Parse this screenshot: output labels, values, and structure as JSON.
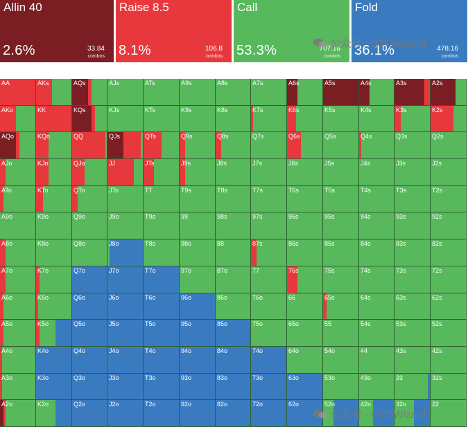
{
  "colors": {
    "allin": "#7a1e24",
    "raise": "#e7393d",
    "call": "#58b85c",
    "fold": "#3a7bbf"
  },
  "summary": [
    {
      "key": "allin",
      "label": "Allin 40",
      "percent": "2.6%",
      "combos": "33.84",
      "combos_label": "combos"
    },
    {
      "key": "raise",
      "label": "Raise 8.5",
      "percent": "8.1%",
      "combos": "106.8",
      "combos_label": "combos"
    },
    {
      "key": "call",
      "label": "Call",
      "percent": "53.3%",
      "combos": "707.18",
      "combos_label": "combos"
    },
    {
      "key": "fold",
      "label": "Fold",
      "percent": "36.1%",
      "combos": "478.16",
      "combos_label": "combos"
    }
  ],
  "watermark": "公众号 · GTOWizard",
  "ranks": [
    "A",
    "K",
    "Q",
    "J",
    "T",
    "9",
    "8",
    "7",
    "6",
    "5",
    "4",
    "3",
    "2"
  ],
  "grid": [
    [
      "AA",
      "AKs",
      "AQs",
      "AJs",
      "ATs",
      "A9s",
      "A8s",
      "A7s",
      "A6s",
      "A5s",
      "A4s",
      "A3s",
      "A2s"
    ],
    [
      "AKo",
      "KK",
      "KQs",
      "KJs",
      "KTs",
      "K9s",
      "K8s",
      "K7s",
      "K6s",
      "K5s",
      "K4s",
      "K3s",
      "K2s"
    ],
    [
      "AQo",
      "KQo",
      "QQ",
      "QJs",
      "QTs",
      "Q9s",
      "Q8s",
      "Q7s",
      "Q6s",
      "Q5s",
      "Q4s",
      "Q3s",
      "Q2s"
    ],
    [
      "AJo",
      "KJo",
      "QJo",
      "JJ",
      "JTs",
      "J9s",
      "J8s",
      "J7s",
      "J6s",
      "J5s",
      "J4s",
      "J3s",
      "J2s"
    ],
    [
      "ATo",
      "KTo",
      "QTo",
      "JTo",
      "TT",
      "T9s",
      "T8s",
      "T7s",
      "T6s",
      "T5s",
      "T4s",
      "T3s",
      "T2s"
    ],
    [
      "A9o",
      "K9o",
      "Q9o",
      "J9o",
      "T9o",
      "99",
      "98s",
      "97s",
      "96s",
      "95s",
      "94s",
      "93s",
      "92s"
    ],
    [
      "A8o",
      "K8o",
      "Q8o",
      "J8o",
      "T8o",
      "98o",
      "88",
      "87s",
      "86s",
      "85s",
      "84s",
      "83s",
      "82s"
    ],
    [
      "A7o",
      "K7o",
      "Q7o",
      "J7o",
      "T7o",
      "97o",
      "87o",
      "77",
      "76s",
      "75s",
      "74s",
      "73s",
      "72s"
    ],
    [
      "A6o",
      "K6o",
      "Q6o",
      "J6o",
      "T6o",
      "96o",
      "86o",
      "76o",
      "66",
      "65s",
      "64s",
      "63s",
      "62s"
    ],
    [
      "A5o",
      "K5o",
      "Q5o",
      "J5o",
      "T5o",
      "95o",
      "85o",
      "75o",
      "65o",
      "55",
      "54s",
      "53s",
      "52s"
    ],
    [
      "A4o",
      "K4o",
      "Q4o",
      "J4o",
      "T4o",
      "94o",
      "84o",
      "74o",
      "64o",
      "54o",
      "44",
      "43s",
      "42s"
    ],
    [
      "A3o",
      "K3o",
      "Q3o",
      "J3o",
      "T3o",
      "93o",
      "83o",
      "73o",
      "63o",
      "53o",
      "43o",
      "33",
      "32s"
    ],
    [
      "A2o",
      "K2o",
      "Q2o",
      "J2o",
      "T2o",
      "92o",
      "82o",
      "72o",
      "62o",
      "52o",
      "42o",
      "32o",
      "22"
    ]
  ],
  "frequencies": [
    [
      [
        0,
        1,
        0,
        0
      ],
      [
        0,
        0.45,
        0.55,
        0
      ],
      [
        0.45,
        0.1,
        0.45,
        0
      ],
      [
        0,
        0,
        1,
        0
      ],
      [
        0,
        0,
        1,
        0
      ],
      [
        0,
        0,
        1,
        0
      ],
      [
        0,
        0,
        1,
        0
      ],
      [
        0,
        0,
        1,
        0
      ],
      [
        0.3,
        0,
        0.7,
        0
      ],
      [
        1,
        0,
        0,
        0
      ],
      [
        0.3,
        0,
        0.7,
        0
      ],
      [
        0.85,
        0.15,
        0,
        0
      ],
      [
        0.7,
        0,
        0.3,
        0
      ]
    ],
    [
      [
        0,
        0.45,
        0.55,
        0
      ],
      [
        0,
        1,
        0,
        0
      ],
      [
        0.55,
        0.1,
        0.35,
        0
      ],
      [
        0,
        0,
        1,
        0
      ],
      [
        0,
        0,
        1,
        0
      ],
      [
        0,
        0,
        1,
        0
      ],
      [
        0,
        0,
        1,
        0
      ],
      [
        0,
        0.05,
        0.95,
        0
      ],
      [
        0,
        0.25,
        0.75,
        0
      ],
      [
        0,
        0,
        1,
        0
      ],
      [
        0,
        0,
        1,
        0
      ],
      [
        0,
        0.18,
        0.82,
        0
      ],
      [
        0,
        0.65,
        0.35,
        0
      ]
    ],
    [
      [
        0.45,
        0.1,
        0.45,
        0
      ],
      [
        0,
        0.35,
        0.65,
        0
      ],
      [
        0,
        0.95,
        0.05,
        0
      ],
      [
        0.45,
        0.5,
        0.05,
        0
      ],
      [
        0,
        0.5,
        0.5,
        0
      ],
      [
        0,
        0.15,
        0.85,
        0
      ],
      [
        0,
        0.15,
        0.85,
        0
      ],
      [
        0,
        0,
        1,
        0
      ],
      [
        0,
        0.4,
        0.6,
        0
      ],
      [
        0,
        0,
        1,
        0
      ],
      [
        0,
        0.05,
        0.95,
        0
      ],
      [
        0,
        0,
        1,
        0
      ],
      [
        0,
        0,
        1,
        0
      ]
    ],
    [
      [
        0,
        0.15,
        0.85,
        0
      ],
      [
        0,
        0.35,
        0.65,
        0
      ],
      [
        0,
        0.35,
        0.65,
        0
      ],
      [
        0,
        0.75,
        0.25,
        0
      ],
      [
        0,
        0.3,
        0.7,
        0
      ],
      [
        0,
        0.15,
        0.85,
        0
      ],
      [
        0,
        0,
        1,
        0
      ],
      [
        0,
        0,
        1,
        0
      ],
      [
        0,
        0,
        1,
        0
      ],
      [
        0,
        0,
        1,
        0
      ],
      [
        0,
        0,
        1,
        0
      ],
      [
        0,
        0,
        1,
        0
      ],
      [
        0,
        0,
        1,
        0
      ]
    ],
    [
      [
        0,
        0.1,
        0.9,
        0
      ],
      [
        0,
        0.2,
        0.8,
        0
      ],
      [
        0,
        0.15,
        0.85,
        0
      ],
      [
        0,
        0,
        1,
        0
      ],
      [
        0,
        0,
        1,
        0
      ],
      [
        0,
        0,
        1,
        0
      ],
      [
        0,
        0,
        1,
        0
      ],
      [
        0,
        0,
        1,
        0
      ],
      [
        0,
        0,
        1,
        0
      ],
      [
        0,
        0,
        1,
        0
      ],
      [
        0,
        0,
        1,
        0
      ],
      [
        0,
        0,
        1,
        0
      ],
      [
        0,
        0,
        1,
        0
      ]
    ],
    [
      [
        0,
        0,
        1,
        0
      ],
      [
        0,
        0,
        1,
        0
      ],
      [
        0,
        0,
        1,
        0
      ],
      [
        0,
        0,
        1,
        0
      ],
      [
        0,
        0,
        1,
        0
      ],
      [
        0,
        0,
        1,
        0
      ],
      [
        0,
        0,
        1,
        0
      ],
      [
        0,
        0,
        1,
        0
      ],
      [
        0,
        0,
        1,
        0
      ],
      [
        0,
        0,
        1,
        0
      ],
      [
        0,
        0,
        1,
        0
      ],
      [
        0,
        0,
        1,
        0
      ],
      [
        0,
        0,
        1,
        0
      ]
    ],
    [
      [
        0,
        0.15,
        0.85,
        0
      ],
      [
        0,
        0,
        1,
        0
      ],
      [
        0,
        0,
        1,
        0
      ],
      [
        0,
        0,
        0.05,
        0.95
      ],
      [
        0,
        0,
        1,
        0
      ],
      [
        0,
        0,
        1,
        0
      ],
      [
        0,
        0,
        1,
        0
      ],
      [
        0,
        0.15,
        0.85,
        0
      ],
      [
        0,
        0,
        1,
        0
      ],
      [
        0,
        0,
        1,
        0
      ],
      [
        0,
        0,
        1,
        0
      ],
      [
        0,
        0,
        1,
        0
      ],
      [
        0,
        0,
        1,
        0
      ]
    ],
    [
      [
        0,
        0.15,
        0.85,
        0
      ],
      [
        0,
        0.1,
        0.9,
        0
      ],
      [
        0,
        0,
        0,
        1
      ],
      [
        0,
        0,
        0,
        1
      ],
      [
        0,
        0,
        0,
        1
      ],
      [
        0,
        0,
        1,
        0
      ],
      [
        0,
        0,
        1,
        0
      ],
      [
        0,
        0,
        1,
        0
      ],
      [
        0,
        0.3,
        0.7,
        0
      ],
      [
        0,
        0,
        1,
        0
      ],
      [
        0,
        0,
        1,
        0
      ],
      [
        0,
        0,
        1,
        0
      ],
      [
        0,
        0,
        1,
        0
      ]
    ],
    [
      [
        0,
        0.1,
        0.9,
        0
      ],
      [
        0,
        0.05,
        0.95,
        0
      ],
      [
        0,
        0,
        0,
        1
      ],
      [
        0,
        0,
        0,
        1
      ],
      [
        0,
        0,
        0,
        1
      ],
      [
        0,
        0,
        0,
        1
      ],
      [
        0,
        0,
        1,
        0
      ],
      [
        0,
        0,
        1,
        0
      ],
      [
        0,
        0,
        1,
        0
      ],
      [
        0,
        0.1,
        0.9,
        0
      ],
      [
        0,
        0,
        1,
        0
      ],
      [
        0,
        0,
        1,
        0
      ],
      [
        0,
        0,
        1,
        0
      ]
    ],
    [
      [
        0,
        0.1,
        0.9,
        0
      ],
      [
        0,
        0.1,
        0.45,
        0.45
      ],
      [
        0,
        0,
        0,
        1
      ],
      [
        0,
        0,
        0,
        1
      ],
      [
        0,
        0,
        0,
        1
      ],
      [
        0,
        0,
        0,
        1
      ],
      [
        0,
        0,
        0,
        1
      ],
      [
        0,
        0,
        1,
        0
      ],
      [
        0,
        0,
        1,
        0
      ],
      [
        0,
        0,
        1,
        0
      ],
      [
        0,
        0,
        1,
        0
      ],
      [
        0,
        0,
        1,
        0
      ],
      [
        0,
        0,
        1,
        0
      ]
    ],
    [
      [
        0,
        0.05,
        0.95,
        0
      ],
      [
        0,
        0,
        0,
        1
      ],
      [
        0,
        0,
        0,
        1
      ],
      [
        0,
        0,
        0,
        1
      ],
      [
        0,
        0,
        0,
        1
      ],
      [
        0,
        0,
        0,
        1
      ],
      [
        0,
        0,
        0,
        1
      ],
      [
        0,
        0,
        0,
        1
      ],
      [
        0,
        0,
        1,
        0
      ],
      [
        0,
        0,
        1,
        0
      ],
      [
        0,
        0,
        1,
        0
      ],
      [
        0,
        0,
        1,
        0
      ],
      [
        0,
        0,
        1,
        0
      ]
    ],
    [
      [
        0,
        0.05,
        0.95,
        0
      ],
      [
        0,
        0,
        0,
        1
      ],
      [
        0,
        0,
        0,
        1
      ],
      [
        0,
        0,
        0,
        1
      ],
      [
        0,
        0,
        0,
        1
      ],
      [
        0,
        0,
        0,
        1
      ],
      [
        0,
        0,
        0,
        1
      ],
      [
        0,
        0,
        0,
        1
      ],
      [
        0,
        0,
        0,
        1
      ],
      [
        0,
        0,
        1,
        0
      ],
      [
        0,
        0,
        1,
        0
      ],
      [
        0,
        0,
        0.95,
        0.05
      ],
      [
        0,
        0,
        1,
        0
      ]
    ],
    [
      [
        0.1,
        0.05,
        0.85,
        0
      ],
      [
        0,
        0,
        0.55,
        0.45
      ],
      [
        0,
        0,
        0,
        1
      ],
      [
        0,
        0,
        0,
        1
      ],
      [
        0,
        0,
        0,
        1
      ],
      [
        0,
        0,
        0,
        1
      ],
      [
        0,
        0,
        0,
        1
      ],
      [
        0,
        0,
        0,
        1
      ],
      [
        0,
        0,
        0,
        1
      ],
      [
        0,
        0,
        0.3,
        0.7
      ],
      [
        0,
        0,
        0.4,
        0.6
      ],
      [
        0,
        0,
        0.55,
        0.45
      ],
      [
        0,
        0,
        1,
        0
      ]
    ]
  ]
}
